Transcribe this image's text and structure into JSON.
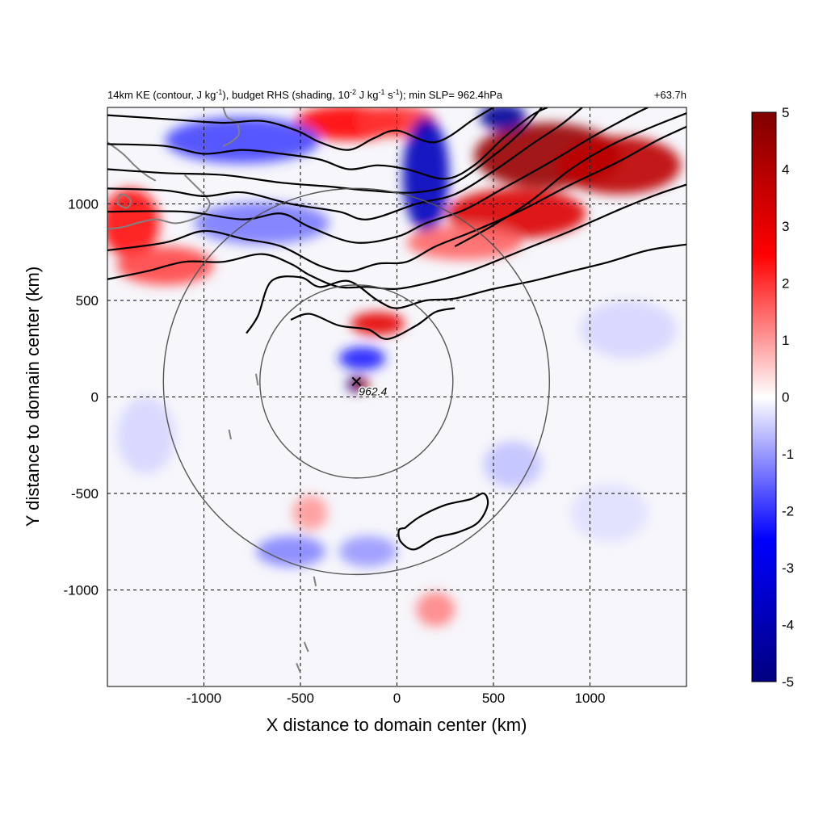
{
  "chart_data": {
    "type": "heatmap",
    "title_parts": [
      "14km KE (contour, J kg",
      "-1",
      "), budget RHS (shading, 10",
      "-2",
      " J kg",
      "-1",
      " s",
      "-1",
      "); min SLP= 962.4hPa"
    ],
    "forecast_time": "+63.7h",
    "xlabel": "X distance to domain center (km)",
    "ylabel": "Y distance to domain center (km)",
    "xlim": [
      -1500,
      1500
    ],
    "ylim": [
      -1500,
      1500
    ],
    "xticks": [
      -1000,
      -500,
      0,
      500,
      1000
    ],
    "yticks": [
      1000,
      500,
      0,
      -500,
      -1000
    ],
    "grid": true,
    "colorbar": {
      "min": -5,
      "max": 5,
      "ticks": [
        5,
        4,
        3,
        2,
        1,
        0,
        -1,
        -2,
        -3,
        -4,
        -5
      ],
      "colormap": [
        "#00007f",
        "#0000ff",
        "#ffffff",
        "#ff0000",
        "#7f0000"
      ]
    },
    "storm_center": {
      "x": -210,
      "y": 80,
      "min_slp_label": "962.4"
    },
    "range_circles": [
      {
        "x": -210,
        "y": 80,
        "radius": 500
      },
      {
        "x": -210,
        "y": 80,
        "radius": 1000
      }
    ],
    "shading_blobs": [
      {
        "x": 780,
        "y": 1250,
        "rx": 380,
        "ry": 170,
        "value": 4.5
      },
      {
        "x": 620,
        "y": 950,
        "rx": 360,
        "ry": 130,
        "value": 3.2
      },
      {
        "x": 1150,
        "y": 1200,
        "rx": 320,
        "ry": 150,
        "value": 3.8
      },
      {
        "x": -250,
        "y": 1420,
        "rx": 280,
        "ry": 90,
        "value": 2.5
      },
      {
        "x": 0,
        "y": 1430,
        "rx": 200,
        "ry": 80,
        "value": 2.0
      },
      {
        "x": -800,
        "y": 1330,
        "rx": 400,
        "ry": 120,
        "value": -1.8
      },
      {
        "x": 150,
        "y": 1150,
        "rx": 120,
        "ry": 300,
        "value": -3.8
      },
      {
        "x": 550,
        "y": 1450,
        "rx": 120,
        "ry": 70,
        "value": -4.5
      },
      {
        "x": -1380,
        "y": 900,
        "rx": 150,
        "ry": 180,
        "value": 2.4
      },
      {
        "x": -1200,
        "y": 680,
        "rx": 250,
        "ry": 100,
        "value": 1.8
      },
      {
        "x": -700,
        "y": 900,
        "rx": 350,
        "ry": 110,
        "value": -1.3
      },
      {
        "x": 350,
        "y": 800,
        "rx": 300,
        "ry": 90,
        "value": 1.5
      },
      {
        "x": -100,
        "y": 380,
        "rx": 140,
        "ry": 60,
        "value": 3.0
      },
      {
        "x": -180,
        "y": 200,
        "rx": 120,
        "ry": 60,
        "value": -2.2
      },
      {
        "x": -215,
        "y": 65,
        "rx": 45,
        "ry": 40,
        "value": -5.0
      },
      {
        "x": -185,
        "y": 65,
        "rx": 40,
        "ry": 35,
        "value": 4.8
      },
      {
        "x": -450,
        "y": -600,
        "rx": 90,
        "ry": 90,
        "value": 1.0
      },
      {
        "x": -550,
        "y": -800,
        "rx": 180,
        "ry": 80,
        "value": -1.2
      },
      {
        "x": -150,
        "y": -800,
        "rx": 150,
        "ry": 80,
        "value": -1.0
      },
      {
        "x": 200,
        "y": -1100,
        "rx": 100,
        "ry": 90,
        "value": 1.2
      },
      {
        "x": 600,
        "y": -350,
        "rx": 150,
        "ry": 120,
        "value": -0.6
      },
      {
        "x": 1200,
        "y": 350,
        "rx": 250,
        "ry": 150,
        "value": -0.4
      },
      {
        "x": 1100,
        "y": -600,
        "rx": 200,
        "ry": 150,
        "value": -0.3
      },
      {
        "x": -1300,
        "y": -200,
        "rx": 150,
        "ry": 200,
        "value": -0.4
      }
    ],
    "ke_contours": [
      [
        [
          -1500,
          1460
        ],
        [
          -1200,
          1440
        ],
        [
          -900,
          1420
        ],
        [
          -700,
          1430
        ],
        [
          -520,
          1380
        ],
        [
          -400,
          1320
        ],
        [
          -250,
          1280
        ],
        [
          -120,
          1340
        ],
        [
          0,
          1380
        ],
        [
          200,
          1320
        ],
        [
          400,
          1440
        ],
        [
          500,
          1500
        ]
      ],
      [
        [
          -1500,
          1310
        ],
        [
          -1200,
          1300
        ],
        [
          -1000,
          1260
        ],
        [
          -800,
          1280
        ],
        [
          -600,
          1260
        ],
        [
          -400,
          1230
        ],
        [
          -250,
          1180
        ],
        [
          -100,
          1200
        ],
        [
          50,
          1180
        ],
        [
          250,
          1130
        ],
        [
          400,
          1200
        ],
        [
          550,
          1340
        ],
        [
          700,
          1460
        ],
        [
          780,
          1500
        ]
      ],
      [
        [
          -1500,
          1080
        ],
        [
          -1200,
          1070
        ],
        [
          -1000,
          1040
        ],
        [
          -800,
          1060
        ],
        [
          -550,
          1000
        ],
        [
          -300,
          960
        ],
        [
          -150,
          920
        ],
        [
          100,
          1000
        ],
        [
          300,
          1050
        ],
        [
          500,
          1170
        ],
        [
          700,
          1310
        ],
        [
          850,
          1410
        ],
        [
          960,
          1500
        ]
      ],
      [
        [
          -1500,
          960
        ],
        [
          -1100,
          960
        ],
        [
          -800,
          920
        ],
        [
          -600,
          950
        ],
        [
          -450,
          880
        ],
        [
          -220,
          800
        ],
        [
          0,
          830
        ],
        [
          150,
          900
        ],
        [
          350,
          970
        ],
        [
          550,
          1080
        ],
        [
          800,
          1220
        ],
        [
          1000,
          1340
        ],
        [
          1200,
          1450
        ],
        [
          1300,
          1500
        ]
      ],
      [
        [
          -1500,
          760
        ],
        [
          -1200,
          800
        ],
        [
          -1000,
          860
        ],
        [
          -800,
          820
        ],
        [
          -600,
          780
        ],
        [
          -400,
          680
        ],
        [
          -250,
          650
        ],
        [
          -100,
          690
        ],
        [
          50,
          700
        ],
        [
          200,
          780
        ],
        [
          400,
          860
        ],
        [
          650,
          970
        ],
        [
          900,
          1100
        ],
        [
          1150,
          1220
        ],
        [
          1350,
          1330
        ],
        [
          1500,
          1400
        ]
      ],
      [
        [
          -1500,
          610
        ],
        [
          -1300,
          650
        ],
        [
          -1100,
          700
        ],
        [
          -900,
          700
        ],
        [
          -700,
          740
        ],
        [
          -550,
          690
        ],
        [
          -450,
          630
        ],
        [
          -300,
          570
        ],
        [
          -150,
          570
        ],
        [
          0,
          560
        ],
        [
          200,
          600
        ],
        [
          400,
          660
        ],
        [
          650,
          760
        ],
        [
          900,
          860
        ],
        [
          1150,
          970
        ],
        [
          1350,
          1050
        ],
        [
          1500,
          1100
        ]
      ],
      [
        [
          -780,
          330
        ],
        [
          -720,
          420
        ],
        [
          -650,
          600
        ],
        [
          -500,
          620
        ],
        [
          -400,
          570
        ],
        [
          -250,
          600
        ],
        [
          -100,
          500
        ],
        [
          0,
          460
        ],
        [
          150,
          500
        ],
        [
          300,
          510
        ],
        [
          500,
          560
        ],
        [
          700,
          600
        ],
        [
          900,
          650
        ],
        [
          1100,
          700
        ],
        [
          1300,
          760
        ],
        [
          1500,
          790
        ]
      ],
      [
        [
          -550,
          400
        ],
        [
          -450,
          430
        ],
        [
          -300,
          370
        ],
        [
          -150,
          350
        ],
        [
          -50,
          300
        ],
        [
          100,
          370
        ],
        [
          200,
          440
        ],
        [
          300,
          460
        ]
      ],
      [
        [
          -1500,
          1180
        ],
        [
          -1200,
          1160
        ],
        [
          -900,
          1150
        ],
        [
          -600,
          1110
        ],
        [
          -350,
          1090
        ],
        [
          -150,
          1070
        ],
        [
          100,
          1060
        ],
        [
          300,
          1110
        ],
        [
          500,
          1250
        ],
        [
          650,
          1380
        ],
        [
          750,
          1500
        ]
      ],
      [
        [
          1500,
          1470
        ],
        [
          1300,
          1390
        ],
        [
          1100,
          1300
        ],
        [
          900,
          1180
        ],
        [
          700,
          1020
        ],
        [
          500,
          890
        ],
        [
          300,
          780
        ]
      ]
    ],
    "ke_closed_contour": [
      [
        40,
        -680
      ],
      [
        120,
        -620
      ],
      [
        250,
        -560
      ],
      [
        380,
        -530
      ],
      [
        450,
        -500
      ],
      [
        470,
        -560
      ],
      [
        420,
        -650
      ],
      [
        320,
        -700
      ],
      [
        200,
        -730
      ],
      [
        90,
        -790
      ],
      [
        20,
        -750
      ],
      [
        10,
        -690
      ],
      [
        40,
        -680
      ]
    ],
    "coastlines": [
      [
        [
          -900,
          1500
        ],
        [
          -880,
          1450
        ],
        [
          -830,
          1420
        ],
        [
          -820,
          1360
        ],
        [
          -860,
          1320
        ],
        [
          -900,
          1300
        ]
      ],
      [
        [
          -1100,
          1150
        ],
        [
          -1050,
          1100
        ],
        [
          -1000,
          1050
        ],
        [
          -970,
          1000
        ],
        [
          -1000,
          950
        ],
        [
          -1060,
          920
        ],
        [
          -1150,
          900
        ],
        [
          -1250,
          920
        ],
        [
          -1350,
          900
        ],
        [
          -1420,
          880
        ],
        [
          -1500,
          870
        ]
      ],
      [
        [
          -1450,
          1000
        ],
        [
          -1400,
          980
        ],
        [
          -1380,
          1020
        ],
        [
          -1430,
          1050
        ],
        [
          -1450,
          1000
        ]
      ],
      [
        [
          -1500,
          1320
        ],
        [
          -1420,
          1260
        ],
        [
          -1360,
          1200
        ],
        [
          -1300,
          1150
        ],
        [
          -1250,
          1120
        ]
      ],
      [
        [
          -730,
          120
        ],
        [
          -720,
          60
        ]
      ],
      [
        [
          -870,
          -170
        ],
        [
          -860,
          -220
        ]
      ],
      [
        [
          -430,
          -930
        ],
        [
          -420,
          -980
        ]
      ],
      [
        [
          -480,
          -1270
        ],
        [
          -460,
          -1320
        ]
      ],
      [
        [
          -520,
          -1380
        ],
        [
          -500,
          -1430
        ]
      ]
    ]
  }
}
